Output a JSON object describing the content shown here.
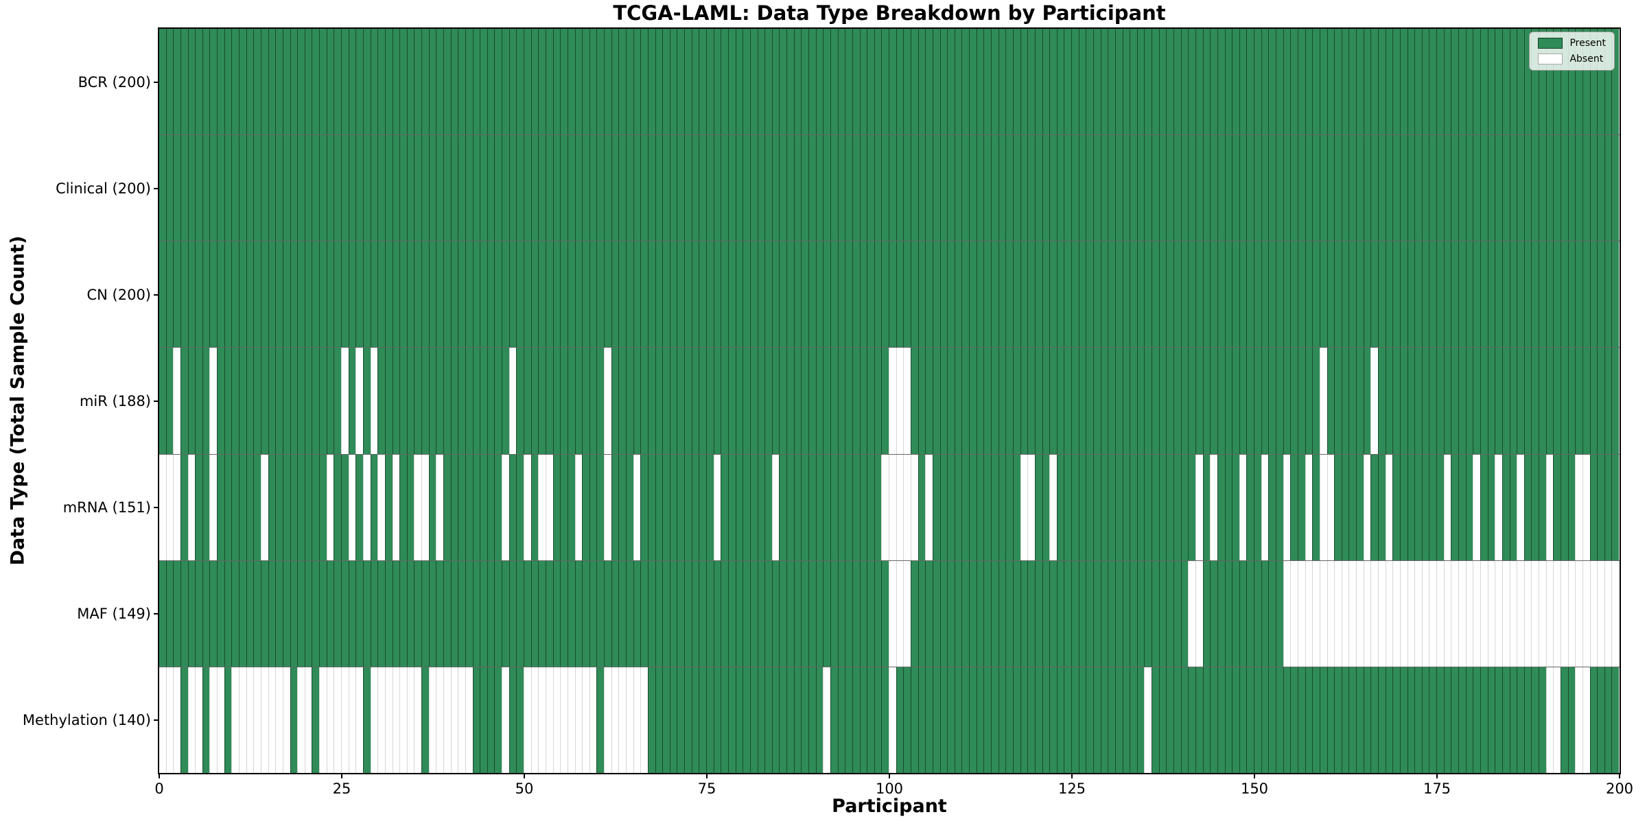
{
  "chart_data": {
    "type": "heatmap",
    "title": "TCGA-LAML: Data Type Breakdown by Participant",
    "xlabel": "Participant",
    "ylabel": "Data Type (Total Sample Count)",
    "xlim": [
      0,
      200
    ],
    "n_participants": 200,
    "x_ticks": [
      0,
      25,
      50,
      75,
      100,
      125,
      150,
      175,
      200
    ],
    "grid": false,
    "legend_position": "upper right",
    "legend": {
      "entries": [
        {
          "label": "Present",
          "color": "#2f8b57"
        },
        {
          "label": "Absent",
          "color": "#ffffff"
        }
      ]
    },
    "cell_states": {
      "present": 1,
      "absent": 0
    },
    "rows": [
      {
        "name": "BCR",
        "label": "BCR (200)",
        "present_count": 200,
        "absent_participants": []
      },
      {
        "name": "Clinical",
        "label": "Clinical (200)",
        "present_count": 200,
        "absent_participants": []
      },
      {
        "name": "CN",
        "label": "CN (200)",
        "present_count": 200,
        "absent_participants": []
      },
      {
        "name": "miR",
        "label": "miR (188)",
        "present_count": 188,
        "absent_participants": [
          2,
          7,
          25,
          27,
          29,
          48,
          61,
          100,
          101,
          102,
          159,
          166
        ]
      },
      {
        "name": "mRNA",
        "label": "mRNA (151)",
        "present_count": 151,
        "absent_participants": [
          0,
          1,
          2,
          4,
          7,
          14,
          23,
          26,
          28,
          30,
          32,
          35,
          36,
          38,
          47,
          50,
          52,
          53,
          57,
          61,
          65,
          76,
          84,
          99,
          100,
          101,
          102,
          103,
          105,
          118,
          119,
          122,
          142,
          144,
          148,
          151,
          154,
          157,
          159,
          160,
          165,
          168,
          176,
          180,
          183,
          186,
          190,
          194,
          195
        ]
      },
      {
        "name": "MAF",
        "label": "MAF (149)",
        "present_count": 149,
        "absent_participants": [
          100,
          101,
          102,
          141,
          142,
          154,
          155,
          156,
          157,
          158,
          159,
          160,
          161,
          162,
          163,
          164,
          165,
          166,
          167,
          168,
          169,
          170,
          171,
          172,
          173,
          174,
          175,
          176,
          177,
          178,
          179,
          180,
          181,
          182,
          183,
          184,
          185,
          186,
          187,
          188,
          189,
          190,
          191,
          192,
          193,
          194,
          195,
          196,
          197,
          198,
          199
        ]
      },
      {
        "name": "Methylation",
        "label": "Methylation (140)",
        "present_count": 140,
        "absent_participants": [
          0,
          1,
          2,
          4,
          5,
          7,
          8,
          10,
          11,
          12,
          13,
          14,
          15,
          16,
          17,
          19,
          20,
          22,
          23,
          24,
          25,
          26,
          27,
          29,
          30,
          31,
          32,
          33,
          34,
          35,
          37,
          38,
          39,
          40,
          41,
          42,
          47,
          50,
          51,
          52,
          53,
          54,
          55,
          56,
          57,
          58,
          59,
          61,
          62,
          63,
          64,
          65,
          66,
          91,
          100,
          135,
          190,
          191,
          194,
          195
        ]
      }
    ]
  }
}
